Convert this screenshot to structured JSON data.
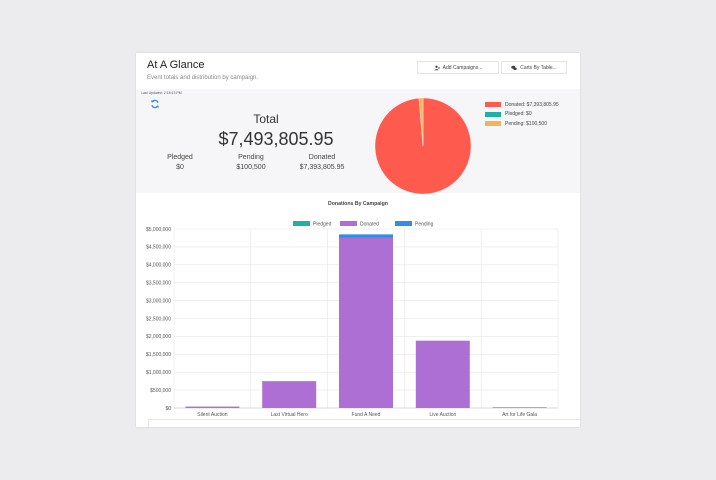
{
  "header": {
    "title": "At A Glance",
    "subtitle": "Event totals and distribution by campaign.",
    "buttons": [
      {
        "label": "Add Campaigns...",
        "icon": "add-user-icon"
      },
      {
        "label": "Carts By Table...",
        "icon": "chat-icon"
      }
    ]
  },
  "summary": {
    "last_updated": "Last Updated: 2:18:13 PM",
    "total_label": "Total",
    "total_value": "$7,493,805.95",
    "stats": [
      {
        "label": "Pledged",
        "value": "$0"
      },
      {
        "label": "Pending",
        "value": "$100,500"
      },
      {
        "label": "Donated",
        "value": "$7,393,805.95"
      }
    ]
  },
  "pie_legend": [
    {
      "label": "Donated: $7,393,805.95",
      "color": "#ff5a4e"
    },
    {
      "label": "Pledged: $0",
      "color": "#1fb0a6"
    },
    {
      "label": "Pending: $100,500",
      "color": "#f3b35e"
    }
  ],
  "chart_data": [
    {
      "type": "pie",
      "labels": [
        "Donated",
        "Pledged",
        "Pending"
      ],
      "values": [
        7393805.95,
        0,
        100500
      ],
      "colors": [
        "#ff5a4e",
        "#1fb0a6",
        "#f3b35e"
      ]
    },
    {
      "type": "bar",
      "title": "Donations By Campaign",
      "categories": [
        "Silent Auction",
        "Last Virtual Hero",
        "Fund A Need",
        "Live Auction",
        "Art for Life Gala"
      ],
      "series": [
        {
          "name": "Pledged",
          "color": "#1fb0a6",
          "values": [
            0,
            0,
            0,
            0,
            0
          ]
        },
        {
          "name": "Donated",
          "color": "#ad6fd3",
          "values": [
            40000,
            750000,
            4750000,
            1880000,
            20000
          ]
        },
        {
          "name": "Pending",
          "color": "#2f8ee6",
          "values": [
            0,
            0,
            100000,
            0,
            0
          ]
        }
      ],
      "stacked": true,
      "ylim": [
        0,
        5000000
      ],
      "yticks": [
        "$0",
        "$500,000",
        "$1,000,000",
        "$1,500,000",
        "$2,000,000",
        "$2,500,000",
        "$3,000,000",
        "$3,500,000",
        "$4,000,000",
        "$4,500,000",
        "$5,000,000"
      ],
      "legend_position": "top"
    }
  ]
}
